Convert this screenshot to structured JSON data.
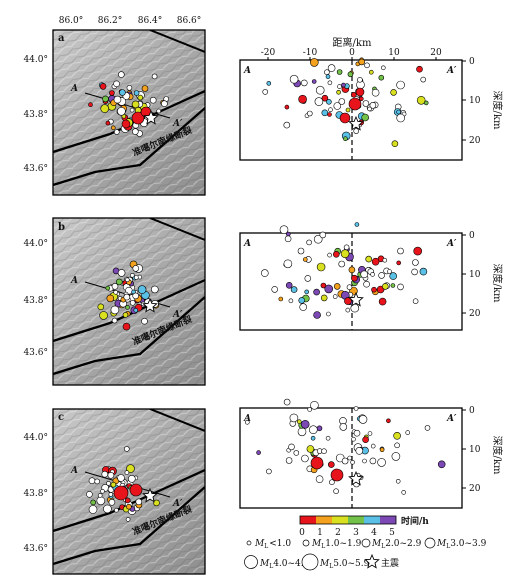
{
  "lon_ticks": [
    "86.0°",
    "86.2°",
    "86.4°",
    "86.6°"
  ],
  "lat_ticks": [
    "44.0°",
    "43.8°",
    "43.6°"
  ],
  "fault_label": "准噶尔南缘断裂",
  "profile_start": "A",
  "profile_end": "A′",
  "distance_label": "距离/km",
  "distance_ticks": [
    "-20",
    "-10",
    "0",
    "10",
    "20"
  ],
  "depth_label": "深度/km",
  "depth_ticks": [
    "0",
    "10",
    "20"
  ],
  "panels": [
    {
      "letter": "a"
    },
    {
      "letter": "b"
    },
    {
      "letter": "c"
    }
  ],
  "colorbar": {
    "colors": [
      "#e8141c",
      "#f4a21e",
      "#d9e020",
      "#72c24a",
      "#5bc0e6",
      "#7b48b4"
    ],
    "ticks": [
      "0",
      "1",
      "2",
      "3",
      "4",
      "5"
    ],
    "label": "时间/h"
  },
  "legend": {
    "m1": "M",
    "m1_sub": "L",
    "m1_text": "<1.0",
    "m2": "M",
    "m2_sub": "L",
    "m2_text": "1.0~1.9",
    "m3": "M",
    "m3_sub": "L",
    "m3_text": "2.0~2.9",
    "m4": "M",
    "m4_sub": "L",
    "m4_text": "3.0~3.9",
    "m5": "M",
    "m5_sub": "L",
    "m5_text": "4.0~4.9",
    "m6": "M",
    "m6_sub": "L",
    "m6_text": "5.0~5.9",
    "mainshock": "主震"
  }
}
